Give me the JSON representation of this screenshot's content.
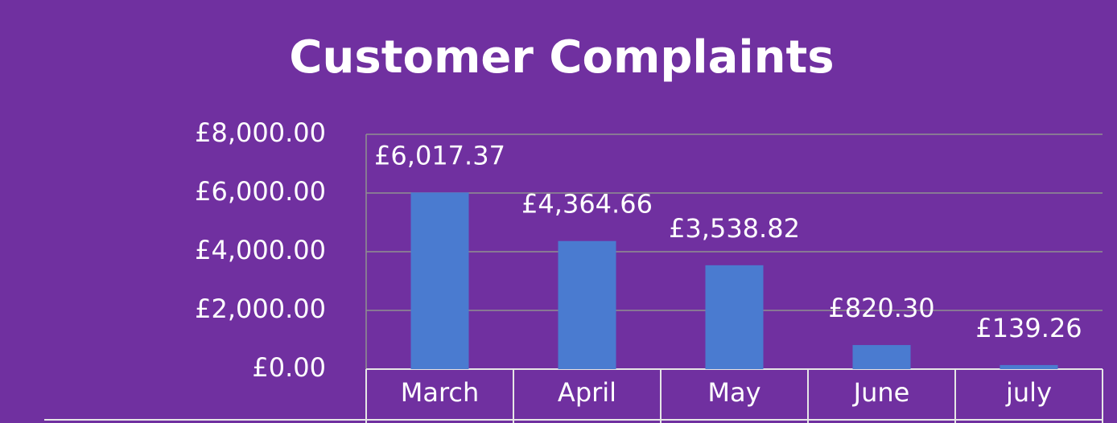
{
  "chart_data": {
    "type": "bar",
    "title": "Customer Complaints",
    "categories": [
      "March",
      "April",
      "May",
      "June",
      "july"
    ],
    "values": [
      6017.37,
      4364.66,
      3538.82,
      820.3,
      139.26
    ],
    "value_labels": [
      "£6,017.37",
      "£4,364.66",
      "£3,538.82",
      "£820.30",
      "£139.26"
    ],
    "color": "#4a7bd0",
    "ylim": [
      0,
      8000
    ],
    "yticks": [
      {
        "value": 0,
        "label": "£0.00"
      },
      {
        "value": 2000,
        "label": "£2,000.00"
      },
      {
        "value": 4000,
        "label": "£4,000.00"
      },
      {
        "value": 6000,
        "label": "£6,000.00"
      },
      {
        "value": 8000,
        "label": "£8,000.00"
      }
    ],
    "grid": true
  }
}
